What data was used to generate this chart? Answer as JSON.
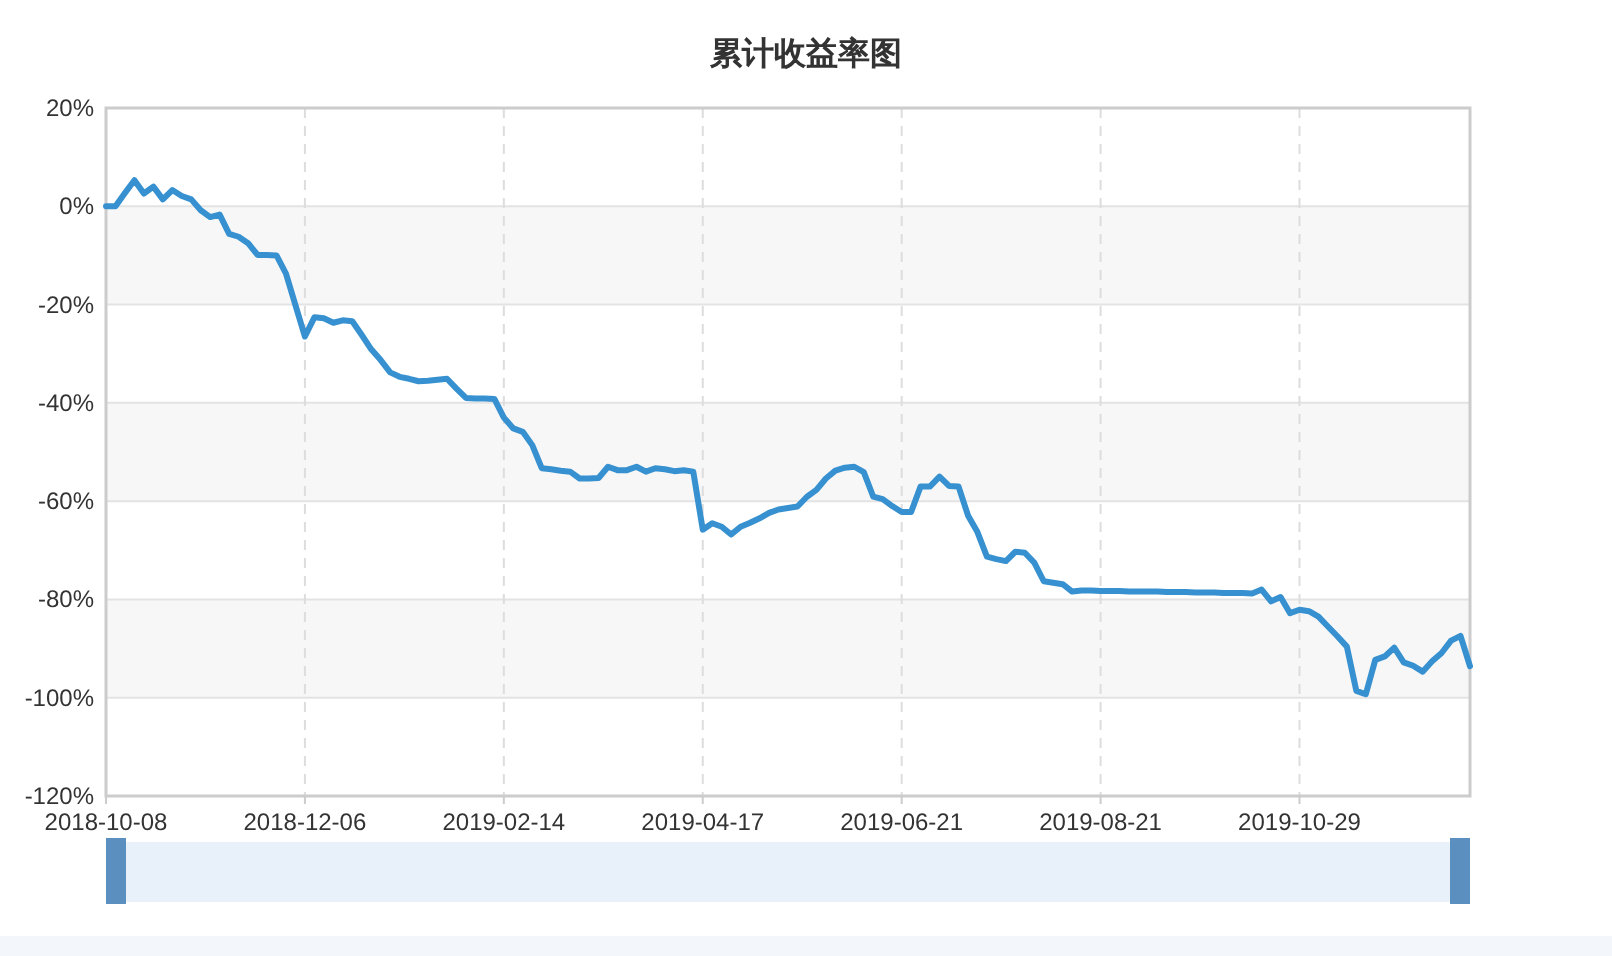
{
  "chart_data": {
    "type": "line",
    "title": "累计收益率图",
    "color": "#3791d0",
    "line_style": "solid",
    "grid": true,
    "categories": [
      "2018-10-08",
      null,
      null,
      null,
      null,
      null,
      null,
      null,
      null,
      null,
      null,
      null,
      null,
      null,
      null,
      null,
      null,
      null,
      null,
      null,
      null,
      "2018-12-06",
      null,
      null,
      null,
      null,
      null,
      null,
      null,
      null,
      null,
      null,
      null,
      null,
      null,
      null,
      null,
      null,
      null,
      null,
      null,
      null,
      "2019-02-14",
      null,
      null,
      null,
      null,
      null,
      null,
      null,
      null,
      null,
      null,
      null,
      null,
      null,
      null,
      null,
      null,
      null,
      null,
      null,
      null,
      "2019-04-17",
      null,
      null,
      null,
      null,
      null,
      null,
      null,
      null,
      null,
      null,
      null,
      null,
      null,
      null,
      null,
      null,
      null,
      null,
      null,
      null,
      "2019-06-21",
      null,
      null,
      null,
      null,
      null,
      null,
      null,
      null,
      null,
      null,
      null,
      null,
      null,
      null,
      null,
      null,
      null,
      null,
      null,
      null,
      "2019-08-21",
      null,
      null,
      null,
      null,
      null,
      null,
      null,
      null,
      null,
      null,
      null,
      null,
      null,
      null,
      null,
      null,
      null,
      null,
      null,
      null,
      "2019-10-29",
      null,
      null,
      null,
      null,
      null,
      null,
      null,
      null,
      null,
      null,
      null,
      null,
      null,
      null,
      null,
      null,
      null,
      null
    ],
    "values": [
      0,
      0,
      2.7,
      5.3,
      2.6,
      4,
      1.4,
      3.3,
      2.1,
      1.4,
      -0.8,
      -2.2,
      -1.7,
      -5.6,
      -6.2,
      -7.5,
      -9.9,
      -9.9,
      -10,
      -13.7,
      -20.1,
      -26.5,
      -22.6,
      -22.8,
      -23.7,
      -23.2,
      -23.4,
      -26.2,
      -29.1,
      -31.3,
      -33.8,
      -34.7,
      -35.1,
      -35.6,
      -35.5,
      -35.3,
      -35.1,
      -37.1,
      -39,
      -39.1,
      -39.1,
      -39.2,
      -43,
      -45.2,
      -45.9,
      -48.6,
      -53.3,
      -53.5,
      -53.8,
      -54,
      -55.4,
      -55.4,
      -55.3,
      -53,
      -53.7,
      -53.7,
      -53,
      -54,
      -53.3,
      -53.5,
      -53.9,
      -53.7,
      -54,
      -65.8,
      -64.5,
      -65.2,
      -66.8,
      -65.2,
      -64.4,
      -63.5,
      -62.4,
      -61.7,
      -61.4,
      -61.1,
      -59.1,
      -57.7,
      -55.4,
      -53.8,
      -53.2,
      -53,
      -54.1,
      -59.1,
      -59.6,
      -61,
      -62.2,
      -62.2,
      -57,
      -57,
      -55,
      -56.9,
      -57,
      -62.9,
      -66.3,
      -71.3,
      -71.8,
      -72.2,
      -70.3,
      -70.5,
      -72.5,
      -76.3,
      -76.6,
      -76.9,
      -78.4,
      -78.2,
      -78.2,
      -78.3,
      -78.3,
      -78.3,
      -78.4,
      -78.4,
      -78.4,
      -78.4,
      -78.5,
      -78.5,
      -78.5,
      -78.6,
      -78.6,
      -78.6,
      -78.7,
      -78.7,
      -78.7,
      -78.8,
      -78,
      -80.4,
      -79.5,
      -82.8,
      -82.1,
      -82.4,
      -83.5,
      -85.5,
      -87.5,
      -89.6,
      -98.6,
      -99.3,
      -92.3,
      -91.6,
      -89.8,
      -92.8,
      -93.5,
      -94.7,
      -92.6,
      -90.9,
      -88.4,
      -87.4,
      -93.6
    ],
    "ylim": [
      -120,
      20
    ],
    "yticks": [
      {
        "value": 20,
        "label": "20%"
      },
      {
        "value": 0,
        "label": "0%"
      },
      {
        "value": -20,
        "label": "-20%"
      },
      {
        "value": -40,
        "label": "-40%"
      },
      {
        "value": -60,
        "label": "-60%"
      },
      {
        "value": -80,
        "label": "-80%"
      },
      {
        "value": -100,
        "label": "-100%"
      },
      {
        "value": -120,
        "label": "-120%"
      }
    ]
  }
}
